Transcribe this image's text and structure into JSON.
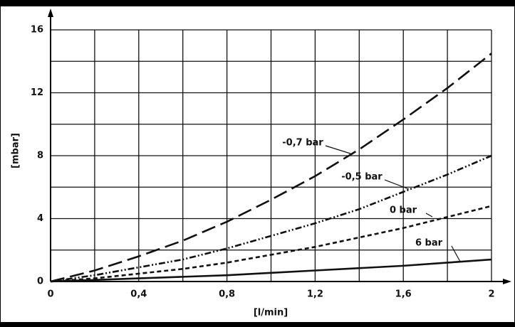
{
  "chart_data": {
    "type": "line",
    "xlabel": "[l/min]",
    "ylabel": "[mbar]",
    "x": [
      0,
      0.2,
      0.4,
      0.6,
      0.8,
      1.0,
      1.2,
      1.4,
      1.6,
      1.8,
      2.0
    ],
    "series": [
      {
        "name": "-0,7 bar",
        "color": "#111111",
        "dash": "20 8",
        "values": [
          0,
          0.7,
          1.6,
          2.6,
          3.8,
          5.2,
          6.7,
          8.4,
          10.3,
          12.3,
          14.5
        ]
      },
      {
        "name": "-0,5 bar",
        "color": "#111111",
        "dash": "9 3 2 3 2 3",
        "values": [
          0,
          0.4,
          0.9,
          1.4,
          2.1,
          2.9,
          3.7,
          4.6,
          5.7,
          6.8,
          8.0
        ]
      },
      {
        "name": "0 bar",
        "color": "#111111",
        "dash": "6 4",
        "values": [
          0,
          0.2,
          0.5,
          0.8,
          1.2,
          1.7,
          2.2,
          2.8,
          3.4,
          4.1,
          4.8
        ]
      },
      {
        "name": "6 bar",
        "color": "#111111",
        "dash": "none",
        "values": [
          0,
          0.1,
          0.2,
          0.3,
          0.4,
          0.55,
          0.7,
          0.85,
          1.0,
          1.2,
          1.4
        ]
      }
    ],
    "xlim": [
      0,
      2
    ],
    "ylim": [
      0,
      16
    ],
    "xticks": [
      0,
      {
        "value": 0.4,
        "label": "0,4"
      },
      {
        "value": 0.8,
        "label": "0,8"
      },
      {
        "value": 1.2,
        "label": "1,2"
      },
      {
        "value": 1.6,
        "label": "1,6"
      },
      2
    ],
    "xminor": [
      0.2,
      0.6,
      1.0,
      1.4,
      1.8
    ],
    "yticks": [
      0,
      4,
      8,
      12,
      16
    ],
    "yminor": [
      2,
      6,
      10,
      14
    ],
    "grid": true
  }
}
